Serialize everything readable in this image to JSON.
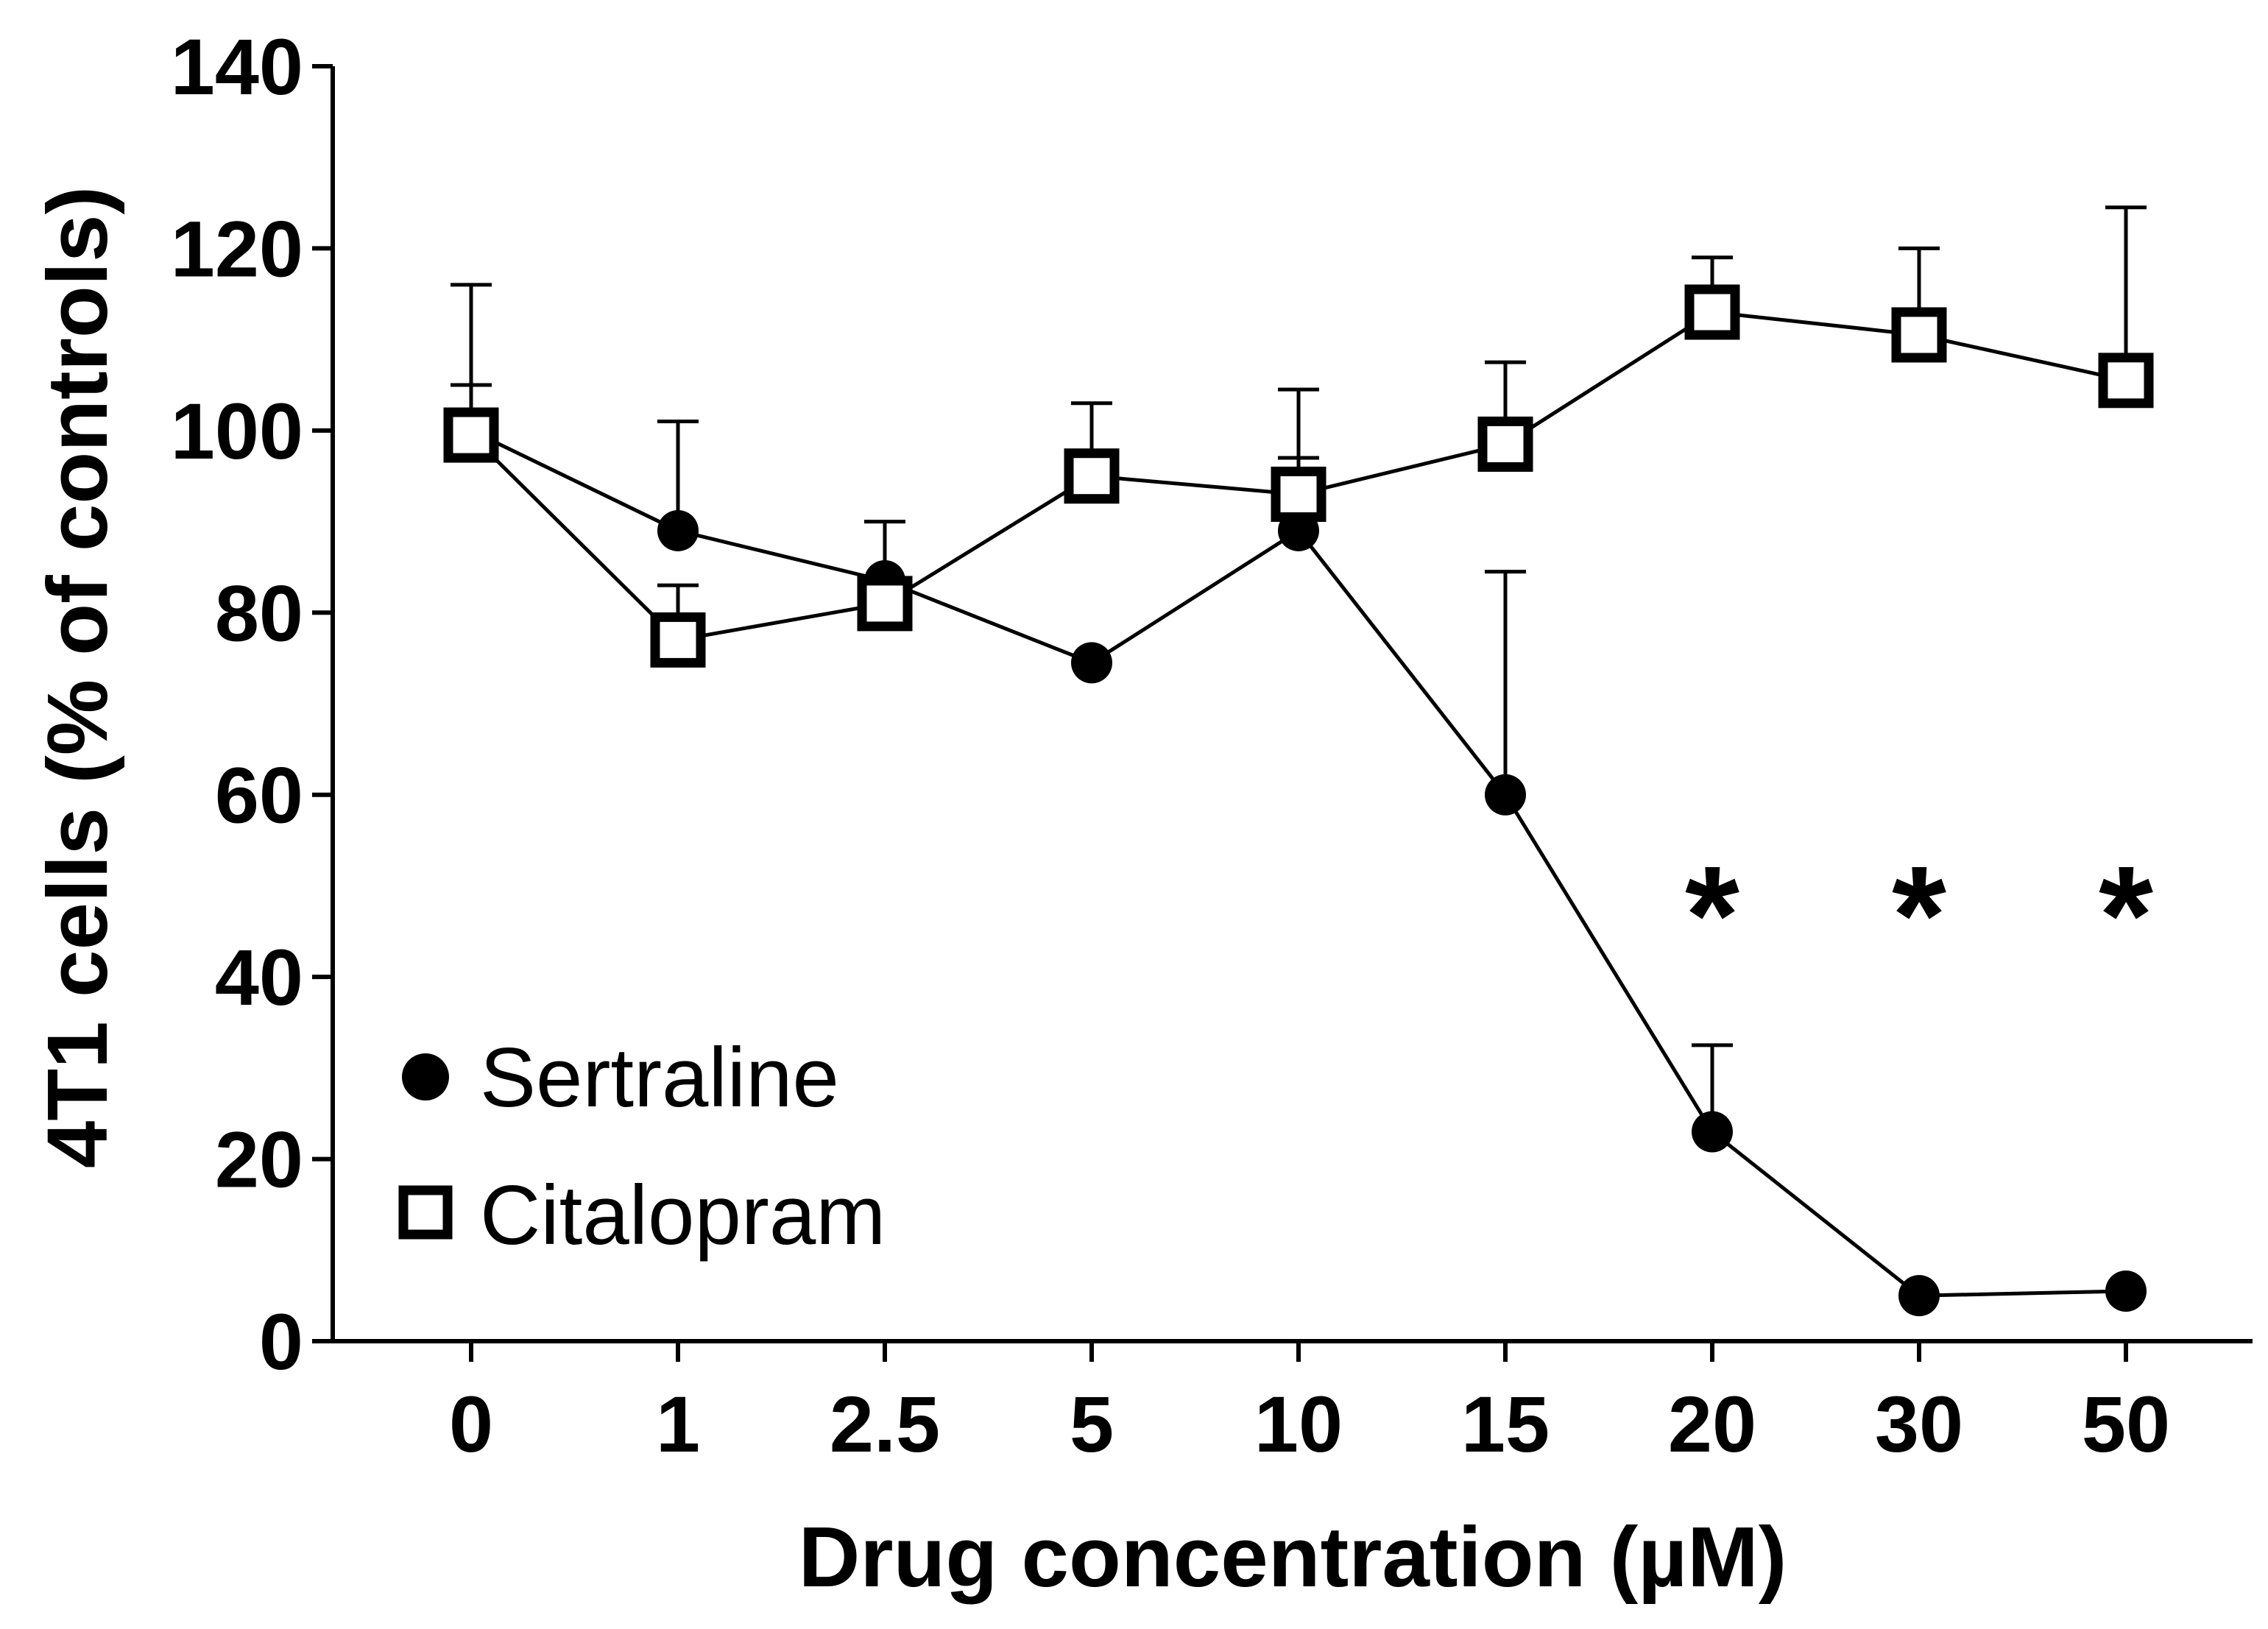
{
  "chart_data": {
    "type": "line",
    "title": "",
    "xlabel": "Drug concentration (µM)",
    "ylabel": "4T1 cells (% of controls)",
    "categories": [
      "0",
      "1",
      "2.5",
      "5",
      "10",
      "15",
      "20",
      "30",
      "50"
    ],
    "ylim": [
      0,
      140
    ],
    "yticks": [
      0,
      20,
      40,
      60,
      80,
      100,
      120,
      140
    ],
    "grid": false,
    "legend_position": "bottom-left",
    "series": [
      {
        "name": "Sertraline",
        "marker": "filled-circle",
        "values": [
          100,
          89,
          83.5,
          74.5,
          89,
          60,
          23,
          5,
          5.5
        ],
        "error_upper": [
          105,
          101,
          90,
          74.5,
          97,
          84.5,
          32.5,
          5,
          5.5
        ]
      },
      {
        "name": "Citalopram",
        "marker": "open-square",
        "values": [
          99.5,
          77,
          81,
          95,
          93,
          98.5,
          113,
          110.5,
          105.5
        ],
        "error_upper": [
          116,
          83,
          81,
          103,
          104.5,
          107.5,
          119,
          120,
          124.5
        ]
      }
    ],
    "annotations": [
      {
        "text": "*",
        "category": "20",
        "y": 52
      },
      {
        "text": "*",
        "category": "30",
        "y": 52
      },
      {
        "text": "*",
        "category": "50",
        "y": 52
      }
    ]
  }
}
